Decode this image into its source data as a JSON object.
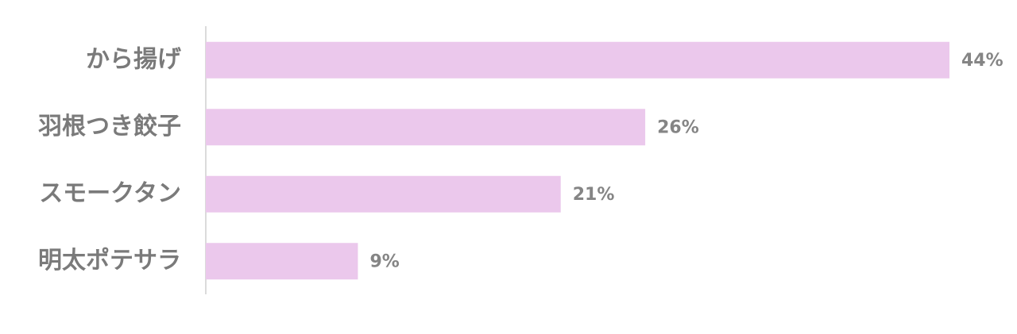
{
  "chart_data": {
    "type": "bar",
    "orientation": "horizontal",
    "categories": [
      "から揚げ",
      "羽根つき餃子",
      "スモークタン",
      "明太ポテサラ"
    ],
    "values": [
      44,
      26,
      21,
      9
    ],
    "value_labels": [
      "44%",
      "26%",
      "21%",
      "9%"
    ],
    "color": "#ebc8ec"
  }
}
